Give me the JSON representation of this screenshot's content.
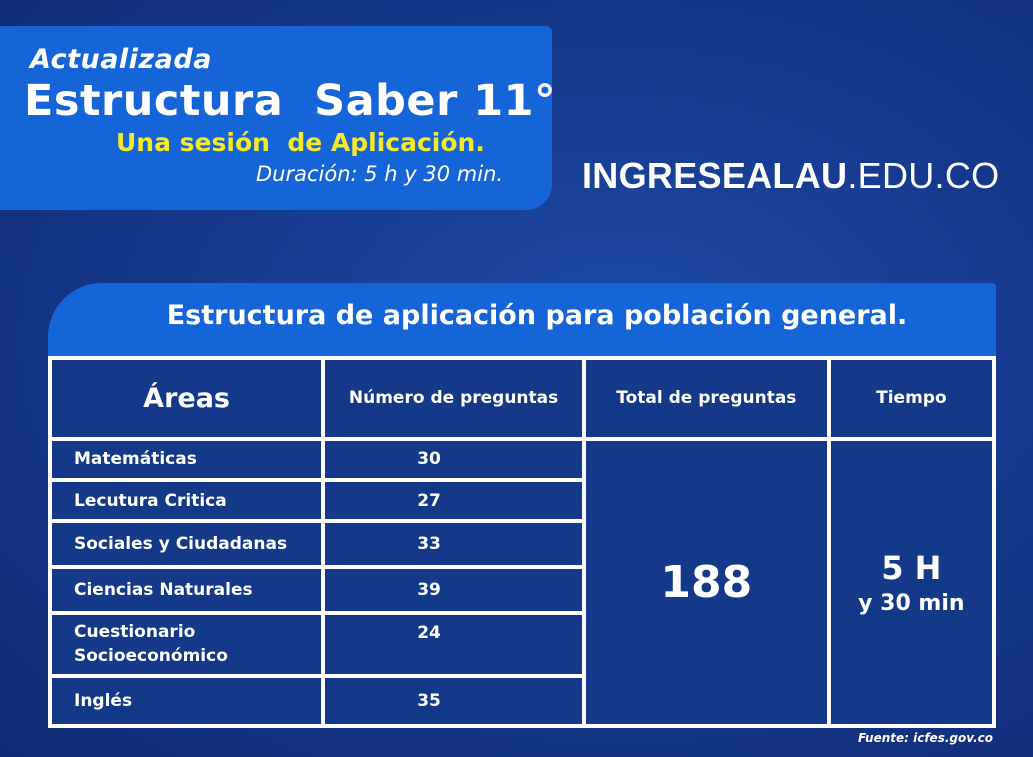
{
  "header": {
    "line1": "Actualizada",
    "line2": "Estructura  Saber 11°",
    "line3": "Una sesión  de Aplicación.",
    "line4": "Duración: 5 h y 30 min."
  },
  "brand": {
    "bold": "INGRESEALAU",
    "rest": ".EDU.CO"
  },
  "table": {
    "title": "Estructura de aplicación para población general.",
    "headers": {
      "areas": "Áreas",
      "number": "Número de preguntas",
      "total": "Total de preguntas",
      "time": "Tiempo"
    },
    "rows": [
      {
        "area": "Matemáticas",
        "count": "30"
      },
      {
        "area": "Lecutura Critica",
        "count": "27"
      },
      {
        "area": "Sociales y Ciudadanas",
        "count": "33"
      },
      {
        "area": "Ciencias Naturales",
        "count": "39"
      },
      {
        "area": "Cuestionario Socioeconómico",
        "count": "24"
      },
      {
        "area": "Inglés",
        "count": "35"
      }
    ],
    "total": "188",
    "time_main": "5 H",
    "time_sub": "y 30 min"
  },
  "source": "Fuente: icfes.gov.co",
  "colors": {
    "background": "#163a8e",
    "accent_blue": "#1565d8",
    "highlight_yellow": "#f5ea2a",
    "table_bg": "#133988"
  }
}
